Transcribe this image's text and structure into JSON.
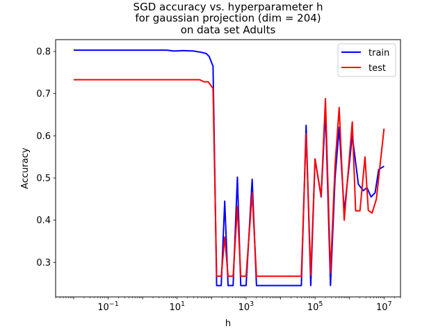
{
  "chart_data": {
    "type": "line",
    "title": [
      "SGD accuracy vs. hyperparameter h",
      "for gaussian projection (dim = 204)",
      "on data set Adults"
    ],
    "xlabel": "h",
    "ylabel": "Accuracy",
    "xscale": "log",
    "xlim": [
      0.003,
      30000000
    ],
    "ylim": [
      0.218,
      0.828
    ],
    "x_ticks": [
      {
        "value": 0.1,
        "base": "10",
        "exp": "−1"
      },
      {
        "value": 10,
        "base": "10",
        "exp": "1"
      },
      {
        "value": 1000,
        "base": "10",
        "exp": "3"
      },
      {
        "value": 100000,
        "base": "10",
        "exp": "5"
      },
      {
        "value": 10000000,
        "base": "10",
        "exp": "7"
      }
    ],
    "y_ticks": [
      "0.3",
      "0.4",
      "0.5",
      "0.6",
      "0.7",
      "0.8"
    ],
    "grid": false,
    "legend_position": "top-right",
    "series": [
      {
        "name": "train",
        "color": "#0000ff",
        "points": [
          [
            0.01,
            0.803
          ],
          [
            1,
            0.803
          ],
          [
            5,
            0.803
          ],
          [
            8,
            0.801
          ],
          [
            15,
            0.802
          ],
          [
            30,
            0.801
          ],
          [
            50,
            0.798
          ],
          [
            70,
            0.795
          ],
          [
            85,
            0.788
          ],
          [
            110,
            0.765
          ],
          [
            140,
            0.245
          ],
          [
            190,
            0.245
          ],
          [
            240,
            0.445
          ],
          [
            300,
            0.245
          ],
          [
            420,
            0.245
          ],
          [
            560,
            0.502
          ],
          [
            700,
            0.245
          ],
          [
            1000,
            0.245
          ],
          [
            1500,
            0.497
          ],
          [
            2000,
            0.245
          ],
          [
            40000,
            0.245
          ],
          [
            55000,
            0.625
          ],
          [
            75000,
            0.245
          ],
          [
            100000,
            0.545
          ],
          [
            150000,
            0.455
          ],
          [
            200000,
            0.66
          ],
          [
            280000,
            0.245
          ],
          [
            380000,
            0.5
          ],
          [
            500000,
            0.62
          ],
          [
            700000,
            0.42
          ],
          [
            1200000,
            0.6
          ],
          [
            1800000,
            0.485
          ],
          [
            2500000,
            0.47
          ],
          [
            3200000,
            0.477
          ],
          [
            4200000,
            0.455
          ],
          [
            5500000,
            0.465
          ],
          [
            7000000,
            0.52
          ],
          [
            10000000,
            0.528
          ]
        ]
      },
      {
        "name": "test",
        "color": "#ff0000",
        "points": [
          [
            0.01,
            0.733
          ],
          [
            1,
            0.733
          ],
          [
            5,
            0.733
          ],
          [
            30,
            0.733
          ],
          [
            45,
            0.733
          ],
          [
            60,
            0.728
          ],
          [
            80,
            0.728
          ],
          [
            110,
            0.712
          ],
          [
            140,
            0.267
          ],
          [
            190,
            0.267
          ],
          [
            240,
            0.36
          ],
          [
            300,
            0.267
          ],
          [
            420,
            0.267
          ],
          [
            560,
            0.433
          ],
          [
            700,
            0.267
          ],
          [
            1000,
            0.267
          ],
          [
            1500,
            0.465
          ],
          [
            2000,
            0.267
          ],
          [
            40000,
            0.267
          ],
          [
            55000,
            0.605
          ],
          [
            75000,
            0.27
          ],
          [
            100000,
            0.545
          ],
          [
            150000,
            0.457
          ],
          [
            200000,
            0.688
          ],
          [
            280000,
            0.275
          ],
          [
            380000,
            0.53
          ],
          [
            500000,
            0.667
          ],
          [
            700000,
            0.4
          ],
          [
            1200000,
            0.633
          ],
          [
            1500000,
            0.422
          ],
          [
            2000000,
            0.422
          ],
          [
            2800000,
            0.55
          ],
          [
            3500000,
            0.423
          ],
          [
            4500000,
            0.417
          ],
          [
            6000000,
            0.45
          ],
          [
            10000000,
            0.617
          ]
        ]
      }
    ]
  }
}
